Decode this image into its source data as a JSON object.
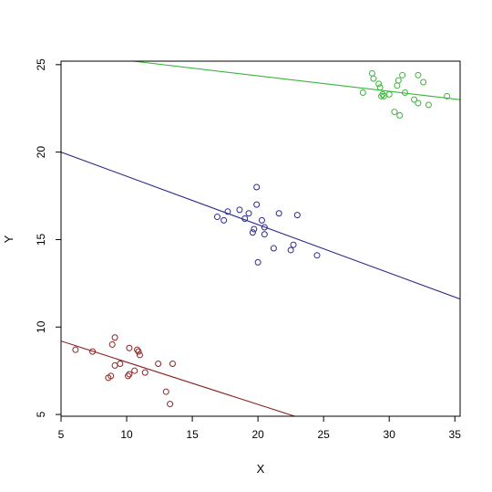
{
  "chart_data": {
    "type": "scatter",
    "title": "",
    "xlabel": "X",
    "ylabel": "Y",
    "xlim": [
      5,
      35.4
    ],
    "ylim": [
      4.9,
      25.2
    ],
    "x_ticks": [
      "5",
      "10",
      "15",
      "20",
      "25",
      "30",
      "35"
    ],
    "y_ticks": [
      "5",
      "10",
      "15",
      "20",
      "25"
    ],
    "grid": false,
    "legend": "none",
    "series": [
      {
        "color": "#8b2323",
        "points": [
          [
            6.1,
            8.7
          ],
          [
            7.4,
            8.6
          ],
          [
            8.6,
            7.1
          ],
          [
            8.8,
            7.2
          ],
          [
            8.9,
            9.0
          ],
          [
            9.1,
            9.4
          ],
          [
            9.1,
            7.8
          ],
          [
            9.5,
            7.9
          ],
          [
            10.1,
            7.2
          ],
          [
            10.2,
            7.3
          ],
          [
            10.2,
            8.8
          ],
          [
            10.6,
            7.5
          ],
          [
            10.8,
            8.7
          ],
          [
            10.9,
            8.6
          ],
          [
            11.0,
            8.4
          ],
          [
            11.4,
            7.4
          ],
          [
            12.4,
            7.9
          ],
          [
            13.0,
            6.3
          ],
          [
            13.3,
            5.6
          ],
          [
            13.5,
            7.9
          ]
        ],
        "fit": {
          "x": [
            5,
            22.8
          ],
          "y": [
            9.2,
            4.9
          ]
        }
      },
      {
        "color": "#2b2b8c",
        "points": [
          [
            16.9,
            16.3
          ],
          [
            17.4,
            16.1
          ],
          [
            17.7,
            16.6
          ],
          [
            18.6,
            16.7
          ],
          [
            19.0,
            16.2
          ],
          [
            19.3,
            16.5
          ],
          [
            19.6,
            15.4
          ],
          [
            19.7,
            15.6
          ],
          [
            19.9,
            18.0
          ],
          [
            19.9,
            17.0
          ],
          [
            20.0,
            13.7
          ],
          [
            20.3,
            16.1
          ],
          [
            20.5,
            15.7
          ],
          [
            20.5,
            15.3
          ],
          [
            21.2,
            14.5
          ],
          [
            21.6,
            16.5
          ],
          [
            22.5,
            14.4
          ],
          [
            22.7,
            14.7
          ],
          [
            23.0,
            16.4
          ],
          [
            24.5,
            14.1
          ]
        ],
        "fit": {
          "x": [
            5,
            35.4
          ],
          "y": [
            20.0,
            11.6
          ]
        }
      },
      {
        "color": "#3cb43c",
        "points": [
          [
            28.0,
            23.4
          ],
          [
            28.7,
            24.5
          ],
          [
            28.8,
            24.2
          ],
          [
            29.2,
            23.9
          ],
          [
            29.3,
            23.7
          ],
          [
            29.4,
            23.2
          ],
          [
            29.5,
            23.3
          ],
          [
            29.6,
            23.2
          ],
          [
            30.0,
            23.3
          ],
          [
            30.4,
            22.3
          ],
          [
            30.6,
            23.8
          ],
          [
            30.7,
            24.1
          ],
          [
            30.8,
            22.1
          ],
          [
            31.0,
            24.4
          ],
          [
            31.2,
            23.4
          ],
          [
            31.9,
            23.0
          ],
          [
            32.2,
            24.4
          ],
          [
            32.2,
            22.8
          ],
          [
            32.6,
            24.0
          ],
          [
            33.0,
            22.7
          ],
          [
            34.4,
            23.2
          ]
        ],
        "fit": {
          "x": [
            10.5,
            35.4
          ],
          "y": [
            25.2,
            23.0
          ]
        }
      }
    ]
  }
}
